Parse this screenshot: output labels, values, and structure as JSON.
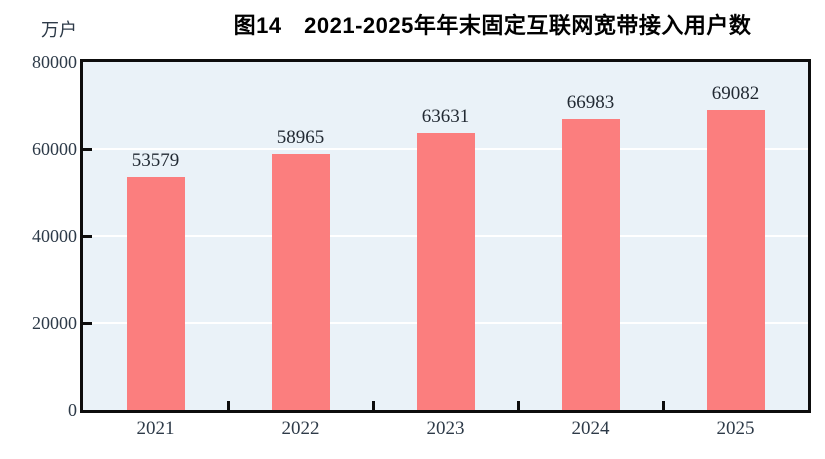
{
  "figure": {
    "title": "图14　2021-2025年年末固定互联网宽带接入用户数",
    "unit_label": "万户"
  },
  "chart_data": {
    "type": "bar",
    "title": "图14　2021-2025年年末固定互联网宽带接入用户数",
    "xlabel": "",
    "ylabel": "万户",
    "categories": [
      "2021",
      "2022",
      "2023",
      "2024",
      "2025"
    ],
    "values": [
      53579,
      58965,
      63631,
      66983,
      69082
    ],
    "data_labels_shown": true,
    "ylim": [
      0,
      80000
    ],
    "yticks": [
      0,
      20000,
      40000,
      60000,
      80000
    ],
    "grid": "horizontal",
    "legend_position": "none"
  },
  "colors": {
    "bar": "#fb7e7e",
    "plot_background": "#eaf2f8",
    "axis_frame": "#0d0d0d",
    "gridline": "#ffffff",
    "axis_text": "#2d3a48",
    "value_text": "#222a33",
    "title_text": "#000000"
  }
}
